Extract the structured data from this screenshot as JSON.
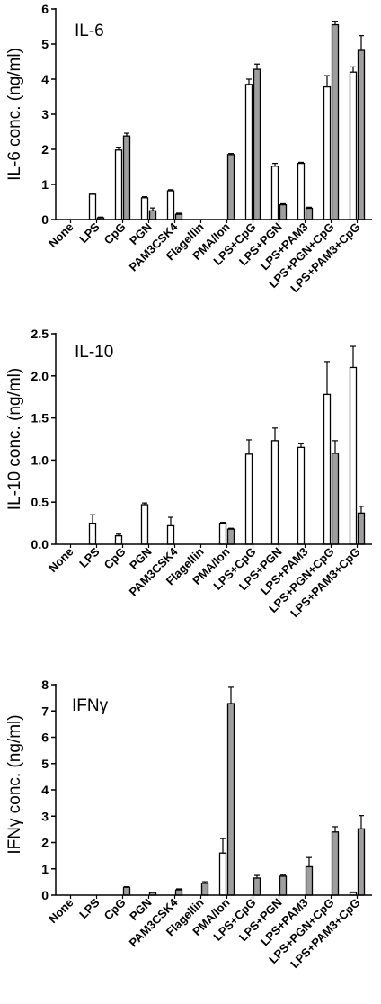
{
  "colors": {
    "bar_a": "#ffffff",
    "bar_b": "#9e9e9e",
    "stroke": "#000000"
  },
  "chart_data": [
    {
      "type": "bar",
      "title": "IL-6",
      "ylabel": "IL-6 conc. (ng/ml)",
      "ylim": [
        0,
        6
      ],
      "yticks": [
        "0",
        "1",
        "2",
        "3",
        "4",
        "5",
        "6"
      ],
      "categories": [
        "None",
        "LPS",
        "CpG",
        "PGN",
        "PAM3CSK4",
        "Flagellin",
        "PMA/Ion",
        "LPS+CpG",
        "LPS+PGN",
        "LPS+PAM3",
        "LPS+PGN+CpG",
        "LPS+PAM3+CpG"
      ],
      "series": [
        {
          "values": [
            0,
            0.72,
            1.98,
            0.62,
            0.82,
            0,
            0,
            3.85,
            1.52,
            1.6,
            3.78,
            4.2
          ],
          "errors": [
            0,
            0.03,
            0.08,
            0.03,
            0.03,
            0,
            0,
            0.15,
            0.08,
            0.03,
            0.32,
            0.15
          ]
        },
        {
          "values": [
            0,
            0.05,
            2.38,
            0.25,
            0.15,
            0,
            1.85,
            4.28,
            0.42,
            0.32,
            5.55,
            4.82
          ],
          "errors": [
            0,
            0.02,
            0.08,
            0.08,
            0.03,
            0,
            0.03,
            0.15,
            0.03,
            0.03,
            0.1,
            0.42
          ]
        }
      ]
    },
    {
      "type": "bar",
      "title": "IL-10",
      "ylabel": "IL-10 conc. (ng/ml)",
      "ylim": [
        0,
        2.5
      ],
      "yticks": [
        "0.0",
        "0.5",
        "1.0",
        "1.5",
        "2.0",
        "2.5"
      ],
      "categories": [
        "None",
        "LPS",
        "CpG",
        "PGN",
        "PAM3CSK4",
        "Flagellin",
        "PMA/Ion",
        "LPS+CpG",
        "LPS+PGN",
        "LPS+PAM3",
        "LPS+PGN+CpG",
        "LPS+PAM3+CpG"
      ],
      "series": [
        {
          "values": [
            0,
            0.25,
            0.1,
            0.47,
            0.22,
            0,
            0.25,
            1.07,
            1.23,
            1.15,
            1.78,
            2.1
          ],
          "errors": [
            0,
            0.1,
            0.02,
            0.02,
            0.1,
            0,
            0.01,
            0.17,
            0.15,
            0.05,
            0.39,
            0.25
          ]
        },
        {
          "values": [
            0,
            0,
            0,
            0,
            0,
            0,
            0.18,
            0,
            0,
            0,
            1.08,
            0.37
          ],
          "errors": [
            0,
            0,
            0,
            0,
            0,
            0,
            0.01,
            0,
            0,
            0,
            0.15,
            0.08
          ]
        }
      ]
    },
    {
      "type": "bar",
      "title": "IFNγ",
      "ylabel": "IFNγ conc. (ng/ml)",
      "ylim": [
        0,
        8
      ],
      "yticks": [
        "0",
        "1",
        "2",
        "3",
        "4",
        "5",
        "6",
        "7",
        "8"
      ],
      "categories": [
        "None",
        "LPS",
        "CpG",
        "PGN",
        "PAM3CSK4",
        "Flagellin",
        "PMA/Ion",
        "LPS+CpG",
        "LPS+PGN",
        "LPS+PAM3",
        "LPS+PGN+CpG",
        "LPS+PAM3+CpG"
      ],
      "series": [
        {
          "values": [
            0,
            0,
            0,
            0,
            0,
            0,
            1.6,
            0,
            0,
            0,
            0,
            0.1
          ],
          "errors": [
            0,
            0,
            0,
            0,
            0,
            0,
            0.55,
            0,
            0,
            0,
            0,
            0.02
          ]
        },
        {
          "values": [
            0,
            0,
            0.3,
            0.1,
            0.2,
            0.45,
            7.28,
            0.65,
            0.72,
            1.08,
            2.4,
            2.52
          ],
          "errors": [
            0,
            0,
            0.02,
            0.01,
            0.04,
            0.06,
            0.62,
            0.1,
            0.04,
            0.35,
            0.2,
            0.5
          ]
        }
      ]
    }
  ]
}
